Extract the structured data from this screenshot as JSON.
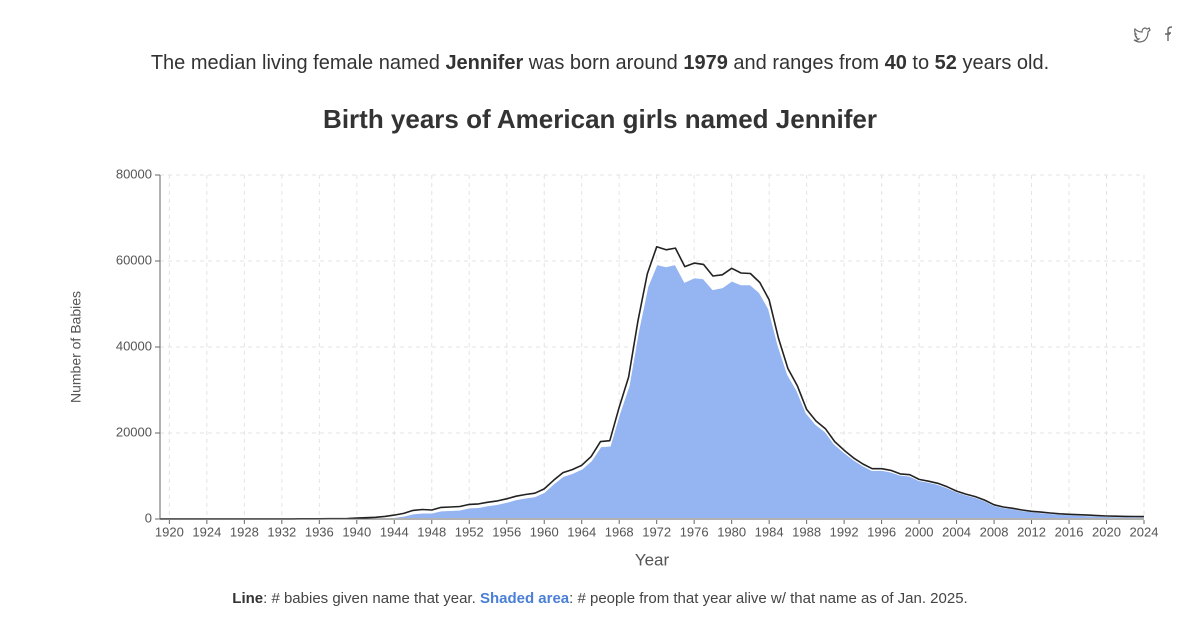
{
  "headline": [
    {
      "text": "The median living female named ",
      "bold": false
    },
    {
      "text": "Jennifer",
      "bold": true
    },
    {
      "text": " was born around ",
      "bold": false
    },
    {
      "text": "1979",
      "bold": true
    },
    {
      "text": " and ranges from ",
      "bold": false
    },
    {
      "text": "40",
      "bold": true
    },
    {
      "text": " to ",
      "bold": false
    },
    {
      "text": "52",
      "bold": true
    },
    {
      "text": " years old.",
      "bold": false
    }
  ],
  "chart_data": {
    "type": "area-line",
    "title": "Birth years of American girls named Jennifer",
    "x_label": "Year",
    "y_label": "Number of Babies",
    "x": [
      1919,
      1920,
      1921,
      1922,
      1923,
      1924,
      1925,
      1926,
      1927,
      1928,
      1929,
      1930,
      1931,
      1932,
      1933,
      1934,
      1935,
      1936,
      1937,
      1938,
      1939,
      1940,
      1941,
      1942,
      1943,
      1944,
      1945,
      1946,
      1947,
      1948,
      1949,
      1950,
      1951,
      1952,
      1953,
      1954,
      1955,
      1956,
      1957,
      1958,
      1959,
      1960,
      1961,
      1962,
      1963,
      1964,
      1965,
      1966,
      1967,
      1968,
      1969,
      1970,
      1971,
      1972,
      1973,
      1974,
      1975,
      1976,
      1977,
      1978,
      1979,
      1980,
      1981,
      1982,
      1983,
      1984,
      1985,
      1986,
      1987,
      1988,
      1989,
      1990,
      1991,
      1992,
      1993,
      1994,
      1995,
      1996,
      1997,
      1998,
      1999,
      2000,
      2001,
      2002,
      2003,
      2004,
      2005,
      2006,
      2007,
      2008,
      2009,
      2010,
      2011,
      2012,
      2013,
      2014,
      2015,
      2016,
      2017,
      2018,
      2019,
      2020,
      2021,
      2022,
      2023,
      2024
    ],
    "series": [
      {
        "name": "Line",
        "description": ": # babies given name that year.",
        "color": "#222222",
        "label_color": "#333333",
        "kind": "line",
        "values": [
          20,
          20,
          20,
          20,
          20,
          20,
          20,
          20,
          20,
          30,
          30,
          30,
          30,
          30,
          30,
          40,
          40,
          50,
          60,
          80,
          100,
          200,
          300,
          400,
          600,
          900,
          1300,
          2000,
          2200,
          2100,
          2700,
          2800,
          2900,
          3400,
          3500,
          3900,
          4200,
          4700,
          5300,
          5700,
          6000,
          7000,
          9000,
          10800,
          11500,
          12500,
          14500,
          18000,
          18200,
          26000,
          33000,
          46000,
          57000,
          63300,
          62600,
          63000,
          58700,
          59500,
          59200,
          56500,
          56800,
          58300,
          57200,
          57100,
          55000,
          51000,
          42000,
          35000,
          31000,
          25500,
          22800,
          21000,
          18000,
          16000,
          14200,
          12800,
          11700,
          11700,
          11300,
          10500,
          10300,
          9200,
          8800,
          8300,
          7500,
          6500,
          5800,
          5200,
          4400,
          3300,
          2800,
          2500,
          2100,
          1800,
          1600,
          1400,
          1200,
          1100,
          1000,
          900,
          800,
          700,
          650,
          600,
          580,
          550
        ]
      },
      {
        "name": "Shaded area",
        "description": ": # people from that year alive w/ that name as of Jan. 2025.",
        "color": "#94b4f2",
        "label_color": "#4a7fd6",
        "kind": "area",
        "values": [
          5,
          5,
          5,
          5,
          5,
          5,
          5,
          5,
          5,
          5,
          10,
          10,
          10,
          10,
          10,
          10,
          15,
          20,
          25,
          30,
          40,
          80,
          120,
          180,
          300,
          500,
          800,
          1300,
          1500,
          1500,
          2000,
          2100,
          2200,
          2700,
          2800,
          3200,
          3500,
          4000,
          4600,
          5000,
          5300,
          6300,
          8300,
          10000,
          10700,
          11700,
          13600,
          16900,
          17100,
          24500,
          31000,
          43500,
          54000,
          59300,
          58800,
          59300,
          55200,
          56200,
          56000,
          53500,
          53900,
          55500,
          54600,
          54600,
          52700,
          48900,
          40400,
          33700,
          29900,
          24700,
          22100,
          20400,
          17500,
          15600,
          13900,
          12500,
          11400,
          11450,
          11050,
          10300,
          10100,
          9050,
          8650,
          8170,
          7380,
          6400,
          5720,
          5130,
          4340,
          3260,
          2770,
          2470,
          2080,
          1780,
          1580,
          1385,
          1190,
          1090,
          990,
          890,
          795,
          695,
          645,
          597,
          577,
          548
        ]
      }
    ],
    "xlim": [
      1919,
      2024
    ],
    "xticks": [
      1920,
      1924,
      1928,
      1932,
      1936,
      1940,
      1944,
      1948,
      1952,
      1956,
      1960,
      1964,
      1968,
      1972,
      1976,
      1980,
      1984,
      1988,
      1992,
      1996,
      2000,
      2004,
      2008,
      2012,
      2016,
      2020,
      2024
    ],
    "ylim": [
      0,
      80000
    ],
    "yticks": [
      0,
      20000,
      40000,
      60000,
      80000
    ],
    "grid": true
  }
}
